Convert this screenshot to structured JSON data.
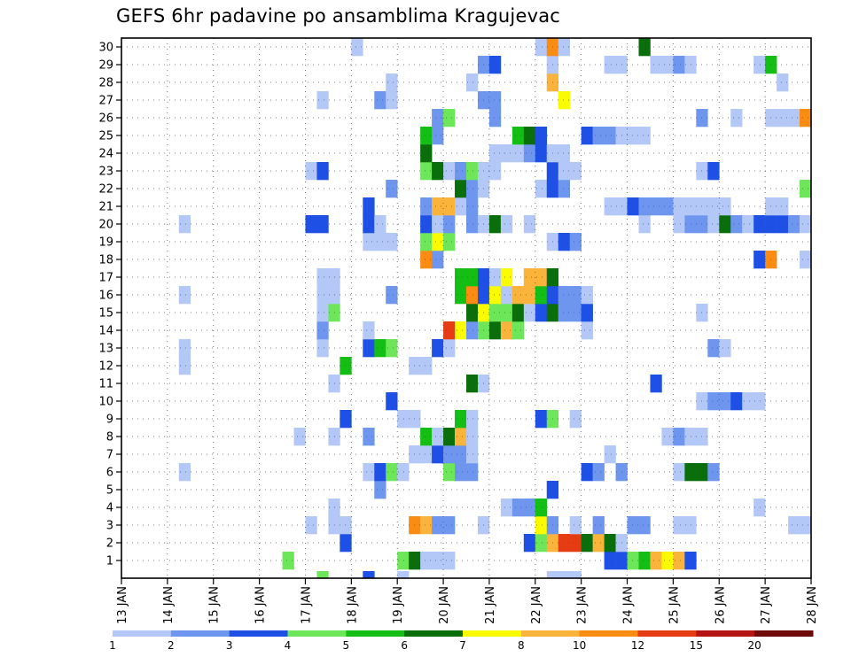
{
  "chart_data": {
    "type": "heatmap",
    "title": "GEFS 6hr padavine po ansamblima Kragujevac",
    "xlabel": "",
    "ylabel": "",
    "x_ticks": [
      "13 JAN",
      "14 JAN",
      "15 JAN",
      "16 JAN",
      "17 JAN",
      "18 JAN",
      "19 JAN",
      "20 JAN",
      "21 JAN",
      "22 JAN",
      "23 JAN",
      "24 JAN",
      "25 JAN",
      "26 JAN",
      "27 JAN",
      "28 JAN"
    ],
    "y_ticks": [
      "1",
      "2",
      "3",
      "4",
      "5",
      "6",
      "7",
      "8",
      "9",
      "10",
      "11",
      "12",
      "13",
      "14",
      "15",
      "16",
      "17",
      "18",
      "19",
      "20",
      "21",
      "22",
      "23",
      "24",
      "25",
      "26",
      "27",
      "28",
      "29",
      "30"
    ],
    "ylim": [
      0,
      30
    ],
    "time_steps": 60,
    "grid": "dotted",
    "colorbar": {
      "labels": [
        "1",
        "2",
        "3",
        "4",
        "5",
        "6",
        "7",
        "8",
        "10",
        "12",
        "15",
        "20"
      ],
      "colors": [
        "#b4c8f8",
        "#6e96ee",
        "#1e50e6",
        "#6ee65a",
        "#14be14",
        "#0a6e0a",
        "#fafa00",
        "#fab43c",
        "#fa8c14",
        "#e63c14",
        "#b41414",
        "#6e0a0a"
      ]
    },
    "bins_note": "cells: [member, time_step, color_level]",
    "cells": [
      [
        1,
        14,
        4
      ],
      [
        1,
        24,
        4
      ],
      [
        1,
        25,
        6
      ],
      [
        1,
        26,
        1
      ],
      [
        1,
        27,
        1
      ],
      [
        1,
        28,
        1
      ],
      [
        1,
        42,
        3
      ],
      [
        1,
        43,
        3
      ],
      [
        1,
        44,
        4
      ],
      [
        1,
        45,
        5
      ],
      [
        1,
        46,
        8
      ],
      [
        1,
        47,
        7
      ],
      [
        1,
        48,
        8
      ],
      [
        1,
        49,
        3
      ],
      [
        2,
        19,
        3
      ],
      [
        2,
        35,
        3
      ],
      [
        2,
        36,
        4
      ],
      [
        2,
        37,
        8
      ],
      [
        2,
        38,
        10
      ],
      [
        2,
        39,
        10
      ],
      [
        2,
        40,
        6
      ],
      [
        2,
        41,
        8
      ],
      [
        2,
        42,
        6
      ],
      [
        2,
        43,
        1
      ],
      [
        3,
        16,
        1
      ],
      [
        3,
        18,
        1
      ],
      [
        3,
        19,
        1
      ],
      [
        3,
        25,
        9
      ],
      [
        3,
        26,
        8
      ],
      [
        3,
        27,
        2
      ],
      [
        3,
        28,
        2
      ],
      [
        3,
        31,
        1
      ],
      [
        3,
        36,
        7
      ],
      [
        3,
        37,
        2
      ],
      [
        3,
        39,
        1
      ],
      [
        3,
        41,
        2
      ],
      [
        3,
        44,
        2
      ],
      [
        3,
        45,
        2
      ],
      [
        3,
        48,
        1
      ],
      [
        3,
        49,
        1
      ],
      [
        3,
        58,
        1
      ],
      [
        3,
        59,
        1
      ],
      [
        4,
        18,
        1
      ],
      [
        4,
        33,
        1
      ],
      [
        4,
        34,
        2
      ],
      [
        4,
        35,
        2
      ],
      [
        4,
        36,
        5
      ],
      [
        4,
        55,
        1
      ],
      [
        5,
        22,
        2
      ],
      [
        5,
        37,
        3
      ],
      [
        6,
        5,
        1
      ],
      [
        6,
        21,
        1
      ],
      [
        6,
        22,
        3
      ],
      [
        6,
        23,
        4
      ],
      [
        6,
        24,
        1
      ],
      [
        6,
        28,
        4
      ],
      [
        6,
        29,
        2
      ],
      [
        6,
        30,
        2
      ],
      [
        6,
        40,
        3
      ],
      [
        6,
        41,
        2
      ],
      [
        6,
        43,
        2
      ],
      [
        6,
        48,
        1
      ],
      [
        6,
        49,
        6
      ],
      [
        6,
        50,
        6
      ],
      [
        6,
        51,
        2
      ],
      [
        7,
        25,
        1
      ],
      [
        7,
        26,
        1
      ],
      [
        7,
        27,
        3
      ],
      [
        7,
        28,
        2
      ],
      [
        7,
        29,
        2
      ],
      [
        7,
        30,
        1
      ],
      [
        7,
        42,
        1
      ],
      [
        8,
        15,
        1
      ],
      [
        8,
        18,
        1
      ],
      [
        8,
        21,
        2
      ],
      [
        8,
        26,
        5
      ],
      [
        8,
        27,
        1
      ],
      [
        8,
        28,
        6
      ],
      [
        8,
        29,
        8
      ],
      [
        8,
        30,
        1
      ],
      [
        8,
        47,
        1
      ],
      [
        8,
        48,
        2
      ],
      [
        8,
        49,
        1
      ],
      [
        8,
        50,
        1
      ],
      [
        9,
        19,
        3
      ],
      [
        9,
        24,
        1
      ],
      [
        9,
        25,
        1
      ],
      [
        9,
        29,
        5
      ],
      [
        9,
        30,
        1
      ],
      [
        9,
        36,
        3
      ],
      [
        9,
        37,
        4
      ],
      [
        9,
        39,
        1
      ],
      [
        10,
        23,
        3
      ],
      [
        10,
        50,
        1
      ],
      [
        10,
        51,
        2
      ],
      [
        10,
        52,
        2
      ],
      [
        10,
        53,
        3
      ],
      [
        10,
        54,
        1
      ],
      [
        10,
        55,
        1
      ],
      [
        11,
        18,
        1
      ],
      [
        11,
        30,
        6
      ],
      [
        11,
        31,
        1
      ],
      [
        11,
        46,
        3
      ],
      [
        12,
        5,
        1
      ],
      [
        12,
        19,
        5
      ],
      [
        12,
        25,
        1
      ],
      [
        12,
        26,
        1
      ],
      [
        13,
        5,
        1
      ],
      [
        13,
        17,
        1
      ],
      [
        13,
        21,
        3
      ],
      [
        13,
        22,
        5
      ],
      [
        13,
        23,
        4
      ],
      [
        13,
        27,
        3
      ],
      [
        13,
        28,
        1
      ],
      [
        13,
        51,
        2
      ],
      [
        13,
        52,
        1
      ],
      [
        14,
        17,
        2
      ],
      [
        14,
        21,
        1
      ],
      [
        14,
        28,
        10
      ],
      [
        14,
        29,
        7
      ],
      [
        14,
        30,
        2
      ],
      [
        14,
        31,
        4
      ],
      [
        14,
        32,
        6
      ],
      [
        14,
        33,
        8
      ],
      [
        14,
        34,
        4
      ],
      [
        14,
        40,
        1
      ],
      [
        15,
        17,
        1
      ],
      [
        15,
        18,
        4
      ],
      [
        15,
        30,
        6
      ],
      [
        15,
        31,
        7
      ],
      [
        15,
        32,
        4
      ],
      [
        15,
        33,
        4
      ],
      [
        15,
        34,
        6
      ],
      [
        15,
        35,
        1
      ],
      [
        15,
        36,
        3
      ],
      [
        15,
        37,
        6
      ],
      [
        15,
        38,
        2
      ],
      [
        15,
        39,
        2
      ],
      [
        15,
        40,
        3
      ],
      [
        15,
        50,
        1
      ],
      [
        16,
        5,
        1
      ],
      [
        16,
        17,
        1
      ],
      [
        16,
        18,
        1
      ],
      [
        16,
        23,
        2
      ],
      [
        16,
        29,
        5
      ],
      [
        16,
        30,
        9
      ],
      [
        16,
        31,
        3
      ],
      [
        16,
        32,
        7
      ],
      [
        16,
        33,
        1
      ],
      [
        16,
        34,
        8
      ],
      [
        16,
        35,
        8
      ],
      [
        16,
        36,
        5
      ],
      [
        16,
        37,
        3
      ],
      [
        16,
        38,
        2
      ],
      [
        16,
        39,
        2
      ],
      [
        16,
        40,
        1
      ],
      [
        17,
        17,
        1
      ],
      [
        17,
        18,
        1
      ],
      [
        17,
        29,
        5
      ],
      [
        17,
        30,
        5
      ],
      [
        17,
        31,
        3
      ],
      [
        17,
        32,
        1
      ],
      [
        17,
        33,
        7
      ],
      [
        17,
        35,
        8
      ],
      [
        17,
        36,
        8
      ],
      [
        17,
        37,
        6
      ],
      [
        18,
        26,
        9
      ],
      [
        18,
        27,
        2
      ],
      [
        18,
        55,
        3
      ],
      [
        18,
        56,
        9
      ],
      [
        18,
        59,
        1
      ],
      [
        19,
        21,
        1
      ],
      [
        19,
        22,
        1
      ],
      [
        19,
        23,
        1
      ],
      [
        19,
        26,
        4
      ],
      [
        19,
        27,
        7
      ],
      [
        19,
        28,
        4
      ],
      [
        19,
        37,
        1
      ],
      [
        19,
        38,
        3
      ],
      [
        19,
        39,
        2
      ],
      [
        20,
        5,
        1
      ],
      [
        20,
        16,
        3
      ],
      [
        20,
        17,
        3
      ],
      [
        20,
        21,
        3
      ],
      [
        20,
        22,
        1
      ],
      [
        20,
        26,
        3
      ],
      [
        20,
        27,
        1
      ],
      [
        20,
        28,
        2
      ],
      [
        20,
        30,
        2
      ],
      [
        20,
        31,
        1
      ],
      [
        20,
        32,
        6
      ],
      [
        20,
        33,
        1
      ],
      [
        20,
        35,
        1
      ],
      [
        20,
        45,
        1
      ],
      [
        20,
        48,
        1
      ],
      [
        20,
        49,
        2
      ],
      [
        20,
        50,
        2
      ],
      [
        20,
        51,
        1
      ],
      [
        20,
        52,
        6
      ],
      [
        20,
        53,
        2
      ],
      [
        20,
        54,
        1
      ],
      [
        20,
        55,
        3
      ],
      [
        20,
        56,
        3
      ],
      [
        20,
        57,
        3
      ],
      [
        20,
        58,
        2
      ],
      [
        20,
        59,
        1
      ],
      [
        21,
        21,
        3
      ],
      [
        21,
        26,
        2
      ],
      [
        21,
        27,
        8
      ],
      [
        21,
        28,
        8
      ],
      [
        21,
        29,
        1
      ],
      [
        21,
        30,
        2
      ],
      [
        21,
        42,
        1
      ],
      [
        21,
        43,
        1
      ],
      [
        21,
        44,
        3
      ],
      [
        21,
        45,
        2
      ],
      [
        21,
        46,
        2
      ],
      [
        21,
        47,
        2
      ],
      [
        21,
        48,
        1
      ],
      [
        21,
        49,
        1
      ],
      [
        21,
        50,
        1
      ],
      [
        21,
        51,
        1
      ],
      [
        21,
        52,
        1
      ],
      [
        21,
        56,
        1
      ],
      [
        21,
        57,
        1
      ],
      [
        22,
        23,
        2
      ],
      [
        22,
        29,
        6
      ],
      [
        22,
        30,
        2
      ],
      [
        22,
        31,
        1
      ],
      [
        22,
        36,
        1
      ],
      [
        22,
        37,
        3
      ],
      [
        22,
        38,
        2
      ],
      [
        22,
        59,
        4
      ],
      [
        23,
        16,
        1
      ],
      [
        23,
        17,
        3
      ],
      [
        23,
        26,
        4
      ],
      [
        23,
        27,
        6
      ],
      [
        23,
        28,
        1
      ],
      [
        23,
        29,
        2
      ],
      [
        23,
        30,
        4
      ],
      [
        23,
        31,
        1
      ],
      [
        23,
        32,
        1
      ],
      [
        23,
        37,
        3
      ],
      [
        23,
        38,
        1
      ],
      [
        23,
        39,
        1
      ],
      [
        23,
        50,
        1
      ],
      [
        23,
        51,
        3
      ],
      [
        24,
        26,
        6
      ],
      [
        24,
        32,
        1
      ],
      [
        24,
        33,
        1
      ],
      [
        24,
        34,
        1
      ],
      [
        24,
        35,
        2
      ],
      [
        24,
        36,
        3
      ],
      [
        24,
        37,
        1
      ],
      [
        24,
        38,
        1
      ],
      [
        25,
        26,
        5
      ],
      [
        25,
        27,
        2
      ],
      [
        25,
        34,
        5
      ],
      [
        25,
        35,
        6
      ],
      [
        25,
        36,
        3
      ],
      [
        25,
        40,
        3
      ],
      [
        25,
        41,
        2
      ],
      [
        25,
        42,
        2
      ],
      [
        25,
        43,
        1
      ],
      [
        25,
        44,
        1
      ],
      [
        25,
        45,
        1
      ],
      [
        26,
        27,
        2
      ],
      [
        26,
        28,
        4
      ],
      [
        26,
        32,
        2
      ],
      [
        26,
        50,
        2
      ],
      [
        26,
        53,
        1
      ],
      [
        26,
        56,
        1
      ],
      [
        26,
        57,
        1
      ],
      [
        26,
        58,
        1
      ],
      [
        26,
        59,
        9
      ],
      [
        27,
        17,
        1
      ],
      [
        27,
        22,
        2
      ],
      [
        27,
        23,
        1
      ],
      [
        27,
        31,
        2
      ],
      [
        27,
        32,
        2
      ],
      [
        27,
        38,
        7
      ],
      [
        28,
        23,
        1
      ],
      [
        28,
        30,
        1
      ],
      [
        28,
        37,
        8
      ],
      [
        28,
        57,
        1
      ],
      [
        29,
        31,
        2
      ],
      [
        29,
        32,
        3
      ],
      [
        29,
        37,
        1
      ],
      [
        29,
        42,
        1
      ],
      [
        29,
        43,
        1
      ],
      [
        29,
        46,
        1
      ],
      [
        29,
        47,
        1
      ],
      [
        29,
        48,
        2
      ],
      [
        29,
        49,
        1
      ],
      [
        29,
        55,
        1
      ],
      [
        29,
        56,
        5
      ],
      [
        30,
        20,
        1
      ],
      [
        30,
        36,
        1
      ],
      [
        30,
        37,
        9
      ],
      [
        30,
        38,
        1
      ],
      [
        30,
        45,
        6
      ]
    ],
    "bottom_strip": [
      [
        17,
        4
      ],
      [
        21,
        3
      ],
      [
        24,
        1
      ],
      [
        37,
        1
      ],
      [
        38,
        1
      ],
      [
        39,
        1
      ]
    ]
  }
}
